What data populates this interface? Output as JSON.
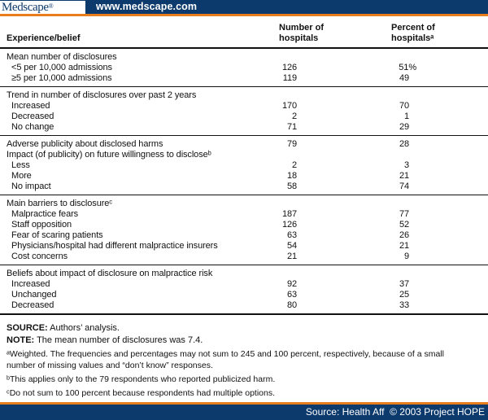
{
  "brand": {
    "logo_text": "Medscape",
    "logo_reg": "®",
    "url_text": "www.medscape.com",
    "bottom_source": "Source: Health Aff  © 2003 Project HOPE"
  },
  "colors": {
    "navy": "#0d3a6d",
    "orange": "#e87d1e"
  },
  "table": {
    "col_experience": "Experience/belief",
    "col_number": "Number of\nhospitals",
    "col_percent": "Percent of\nhospitalsᵃ",
    "sections": [
      {
        "rows": [
          {
            "label": "Mean number of disclosures",
            "indent": false,
            "num": "",
            "pct": ""
          },
          {
            "label": "<5 per 10,000 admissions",
            "indent": true,
            "num": "126",
            "pct": "51%"
          },
          {
            "label": "≥5 per 10,000 admissions",
            "indent": true,
            "num": "119",
            "pct": "49"
          }
        ]
      },
      {
        "rows": [
          {
            "label": "Trend in number of disclosures over past 2 years",
            "indent": false,
            "num": "",
            "pct": ""
          },
          {
            "label": "Increased",
            "indent": true,
            "num": "170",
            "pct": "70"
          },
          {
            "label": "Decreased",
            "indent": true,
            "num": "2",
            "pct": "1"
          },
          {
            "label": "No change",
            "indent": true,
            "num": "71",
            "pct": "29"
          }
        ]
      },
      {
        "rows": [
          {
            "label": "Adverse publicity about disclosed harms",
            "indent": false,
            "num": "79",
            "pct": "28"
          },
          {
            "label": "Impact (of publicity) on future willingness to discloseᵇ",
            "indent": false,
            "num": "",
            "pct": ""
          },
          {
            "label": "Less",
            "indent": true,
            "num": "2",
            "pct": "3"
          },
          {
            "label": "More",
            "indent": true,
            "num": "18",
            "pct": "21"
          },
          {
            "label": "No impact",
            "indent": true,
            "num": "58",
            "pct": "74"
          }
        ]
      },
      {
        "rows": [
          {
            "label": "Main barriers to disclosureᶜ",
            "indent": false,
            "num": "",
            "pct": ""
          },
          {
            "label": "Malpractice fears",
            "indent": true,
            "num": "187",
            "pct": "77"
          },
          {
            "label": "Staff opposition",
            "indent": true,
            "num": "126",
            "pct": "52"
          },
          {
            "label": "Fear of scaring patients",
            "indent": true,
            "num": "63",
            "pct": "26"
          },
          {
            "label": "Physicians/hospital had different malpractice insurers",
            "indent": true,
            "num": "54",
            "pct": "21"
          },
          {
            "label": "Cost concerns",
            "indent": true,
            "num": "21",
            "pct": "9"
          }
        ]
      },
      {
        "rows": [
          {
            "label": "Beliefs about impact of disclosure on malpractice risk",
            "indent": false,
            "num": "",
            "pct": ""
          },
          {
            "label": "Increased",
            "indent": true,
            "num": "92",
            "pct": "37"
          },
          {
            "label": "Unchanged",
            "indent": true,
            "num": "63",
            "pct": "25"
          },
          {
            "label": "Decreased",
            "indent": true,
            "num": "80",
            "pct": "33"
          }
        ]
      }
    ]
  },
  "notes": [
    {
      "prefix": "SOURCE:",
      "text": " Authors’ analysis."
    },
    {
      "prefix": "NOTE:",
      "text": " The mean number of disclosures was 7.4."
    },
    {
      "prefix": "",
      "text": "ᵃWeighted. The frequencies and percentages may not sum to 245 and 100 percent, respectively, because of a small number of missing values and “don’t know” responses."
    },
    {
      "prefix": "",
      "text": "ᵇThis applies only to the 79 respondents who reported publicized harm."
    },
    {
      "prefix": "",
      "text": "ᶜDo not sum to 100 percent because respondents had multiple options."
    }
  ]
}
